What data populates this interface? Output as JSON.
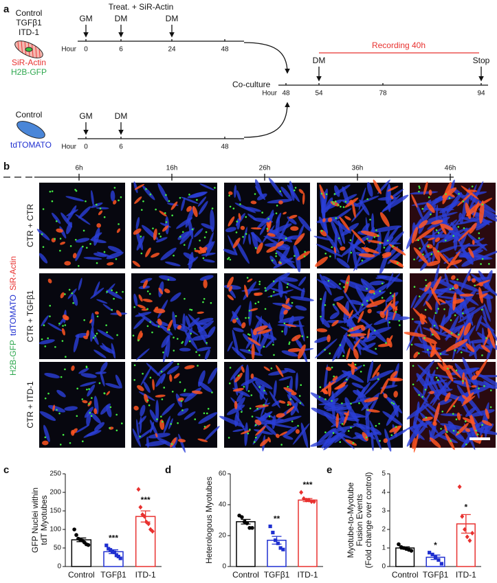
{
  "panel_a": {
    "label": "a",
    "groups": [
      "Control",
      "TGFβ1",
      "ITD-1"
    ],
    "stains": [
      "SiR-Actin",
      "H2B-GFP"
    ],
    "treatment": "Treat. + SiR-Actin",
    "timeline_1": {
      "axis_label": "Hour",
      "hours": [
        0,
        6,
        24,
        48
      ],
      "events": [
        "GM",
        "DM",
        "DM"
      ]
    },
    "control_group": "Control",
    "control_stain": "tdTOMATO",
    "timeline_2": {
      "axis_label": "Hour",
      "hours": [
        0,
        6,
        48
      ],
      "events": [
        "GM",
        "DM"
      ]
    },
    "coculture": {
      "title": "Co-culture",
      "axis_label": "Hour",
      "hours": [
        48,
        54,
        78,
        94
      ],
      "events": [
        "DM",
        "Stop"
      ],
      "recording": "Recording 40h"
    }
  },
  "panel_b": {
    "label": "b",
    "times": [
      "6h",
      "16h",
      "26h",
      "36h",
      "46h"
    ],
    "rows": [
      "CTR + CTR",
      "CTR + TGFβ1",
      "CTR + ITD-1"
    ],
    "stains": [
      "H2B-GFP",
      "tdTOMATO",
      "SiR-Actin"
    ]
  },
  "chart_data": [
    {
      "type": "bar",
      "panel": "c",
      "ylabel": [
        "GFP Nuclei within",
        "tdT Myotubes"
      ],
      "categories": [
        "Control",
        "TGFβ1",
        "ITD-1"
      ],
      "values": [
        72,
        40,
        135
      ],
      "errors": [
        5,
        5,
        15
      ],
      "colors": [
        "#000000",
        "#1f2fd0",
        "#e8312f"
      ],
      "points": [
        [
          100,
          85,
          75,
          72,
          70,
          65,
          60,
          58
        ],
        [
          57,
          48,
          45,
          40,
          38,
          30,
          27,
          22
        ],
        [
          208,
          160,
          140,
          135,
          120,
          115,
          100,
          95
        ]
      ],
      "significance": [
        null,
        "***",
        "***"
      ],
      "ylim": [
        0,
        250
      ],
      "yticks": [
        0,
        50,
        100,
        150,
        200,
        250
      ]
    },
    {
      "type": "bar",
      "panel": "d",
      "ylabel": [
        "Heterologous Myotubes"
      ],
      "categories": [
        "Control",
        "TGFβ1",
        "ITD-1"
      ],
      "values": [
        29,
        17,
        43
      ],
      "errors": [
        1.5,
        2.5,
        1
      ],
      "colors": [
        "#000000",
        "#1f2fd0",
        "#e8312f"
      ],
      "points": [
        [
          33,
          32,
          29,
          28,
          25,
          25
        ],
        [
          26,
          22,
          17,
          15,
          12,
          11
        ],
        [
          48,
          44,
          43,
          43,
          42,
          42
        ]
      ],
      "significance": [
        null,
        "**",
        "***"
      ],
      "ylim": [
        0,
        60
      ],
      "yticks": [
        0,
        20,
        40,
        60
      ]
    },
    {
      "type": "bar",
      "panel": "e",
      "ylabel": [
        "Myotube-to-Myotube",
        "Fusion Events",
        "(Fold change over control)"
      ],
      "categories": [
        "Control",
        "TGFβ1",
        "ITD-1"
      ],
      "values": [
        1.0,
        0.5,
        2.3
      ],
      "errors": [
        0.06,
        0.12,
        0.5
      ],
      "colors": [
        "#000000",
        "#1f2fd0",
        "#e8312f"
      ],
      "points": [
        [
          1.2,
          1.05,
          1.0,
          0.95,
          0.9,
          0.85
        ],
        [
          0.75,
          0.65,
          0.5,
          0.35,
          0.15
        ],
        [
          4.3,
          2.7,
          2.0,
          1.6,
          1.4,
          1.8
        ]
      ],
      "significance": [
        null,
        "*",
        "*"
      ],
      "ylim": [
        0,
        5
      ],
      "yticks": [
        0,
        1,
        2,
        3,
        4,
        5
      ]
    }
  ]
}
